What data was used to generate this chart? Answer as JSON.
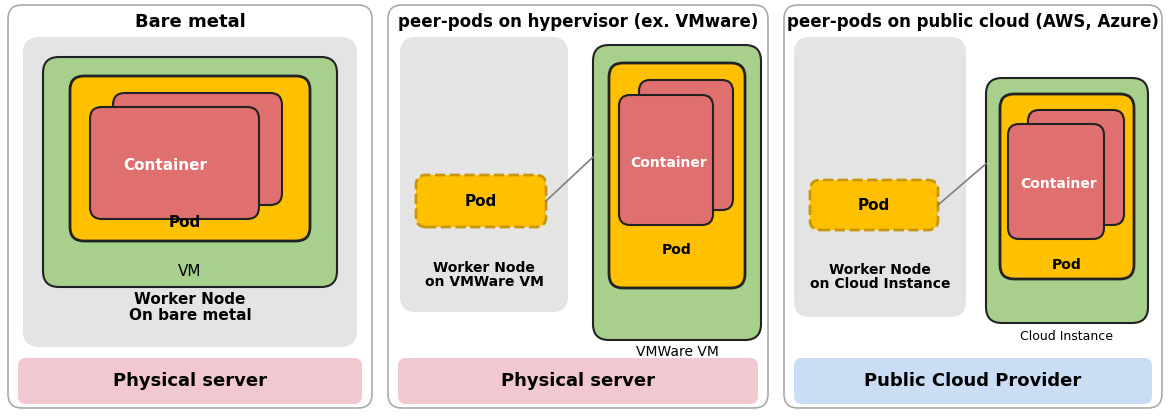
{
  "panel_titles": [
    "Bare metal",
    "peer-pods on hypervisor (ex. VMware)",
    "peer-pods on public cloud (AWS, Azure)"
  ],
  "panel_bottom_labels": [
    "Physical server",
    "Physical server",
    "Public Cloud Provider"
  ],
  "panel_bottom_colors": [
    "#f2c8d0",
    "#f2c8d0",
    "#c9ddf5"
  ],
  "colors": {
    "vm_green": "#a8d08d",
    "pod_yellow": "#ffc000",
    "container_red": "#e07070",
    "worker_node_bg": "#e4e4e4",
    "outer_border": "#222222",
    "panel_border": "#aaaaaa"
  },
  "fig_width": 11.7,
  "fig_height": 4.17,
  "dpi": 100
}
